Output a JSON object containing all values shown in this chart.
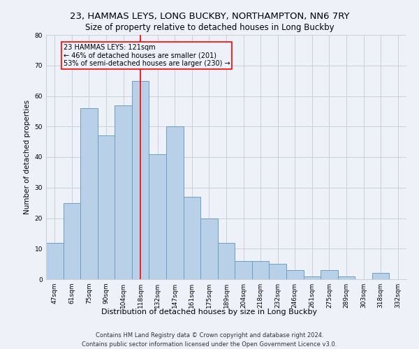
{
  "title": "23, HAMMAS LEYS, LONG BUCKBY, NORTHAMPTON, NN6 7RY",
  "subtitle": "Size of property relative to detached houses in Long Buckby",
  "xlabel": "Distribution of detached houses by size in Long Buckby",
  "ylabel": "Number of detached properties",
  "footnote1": "Contains HM Land Registry data © Crown copyright and database right 2024.",
  "footnote2": "Contains public sector information licensed under the Open Government Licence v3.0.",
  "categories": [
    "47sqm",
    "61sqm",
    "75sqm",
    "90sqm",
    "104sqm",
    "118sqm",
    "132sqm",
    "147sqm",
    "161sqm",
    "175sqm",
    "189sqm",
    "204sqm",
    "218sqm",
    "232sqm",
    "246sqm",
    "261sqm",
    "275sqm",
    "289sqm",
    "303sqm",
    "318sqm",
    "332sqm"
  ],
  "values": [
    12,
    25,
    56,
    47,
    57,
    65,
    41,
    50,
    27,
    20,
    12,
    6,
    6,
    5,
    3,
    1,
    3,
    1,
    0,
    2,
    0
  ],
  "bar_color": "#b8d0e8",
  "bar_edge_color": "#6a9fc8",
  "vline_x_index": 5,
  "annotation_text1": "23 HAMMAS LEYS: 121sqm",
  "annotation_text2": "← 46% of detached houses are smaller (201)",
  "annotation_text3": "53% of semi-detached houses are larger (230) →",
  "vline_color": "red",
  "annotation_box_edgecolor": "red",
  "ylim": [
    0,
    80
  ],
  "yticks": [
    0,
    10,
    20,
    30,
    40,
    50,
    60,
    70,
    80
  ],
  "grid_color": "#c8d0dc",
  "background_color": "#eef2f8",
  "bar_width": 1.0,
  "title_fontsize": 9.5,
  "subtitle_fontsize": 8.5,
  "xlabel_fontsize": 8,
  "ylabel_fontsize": 7.5,
  "tick_fontsize": 6.5,
  "annotation_fontsize": 7,
  "footnote_fontsize": 6
}
